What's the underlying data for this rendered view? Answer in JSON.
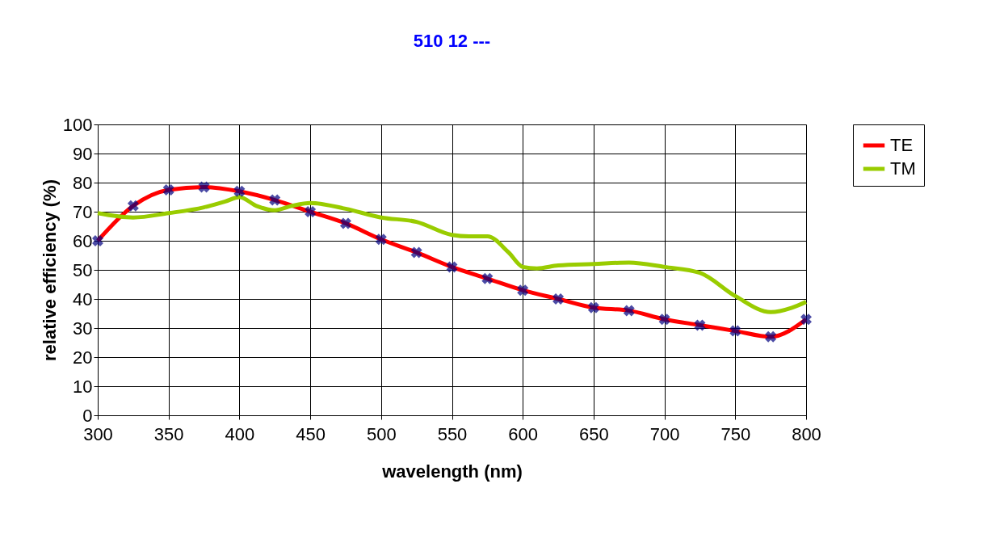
{
  "chart_data": {
    "type": "line",
    "title": "510 12 ---",
    "xlabel": "wavelength (nm)",
    "ylabel": "relative efficiency (%)",
    "xlim": [
      300,
      800
    ],
    "xticks": [
      300,
      350,
      400,
      450,
      500,
      550,
      600,
      650,
      700,
      750,
      800
    ],
    "ylim": [
      0,
      100
    ],
    "yticks": [
      0,
      10,
      20,
      30,
      40,
      50,
      60,
      70,
      80,
      90,
      100
    ],
    "grid": true,
    "legend": "right",
    "series": [
      {
        "name": "TE",
        "color": "#ff0000",
        "marker": "cross",
        "x": [
          300,
          325,
          350,
          375,
          400,
          425,
          450,
          475,
          500,
          525,
          550,
          575,
          600,
          625,
          650,
          675,
          700,
          725,
          750,
          775,
          800
        ],
        "values": [
          60,
          72,
          77.5,
          78.5,
          77,
          74,
          70,
          66,
          60.5,
          56,
          51,
          47,
          43,
          40,
          37,
          36,
          33,
          31,
          29,
          27,
          33
        ]
      },
      {
        "name": "TM",
        "color": "#99cc00",
        "marker": "none",
        "x": [
          300,
          325,
          350,
          375,
          390,
          400,
          412,
          425,
          437,
          450,
          475,
          500,
          525,
          550,
          562,
          575,
          590,
          600,
          610,
          625,
          650,
          675,
          700,
          725,
          750,
          775,
          790,
          800
        ],
        "values": [
          69.5,
          68,
          69.5,
          71.5,
          73.5,
          75,
          72,
          70.5,
          72,
          73,
          71,
          68,
          66.5,
          62,
          61.5,
          61.5,
          56,
          51,
          50.5,
          51.5,
          52,
          52.5,
          51,
          49,
          41,
          35.5,
          37,
          39
        ]
      }
    ]
  }
}
